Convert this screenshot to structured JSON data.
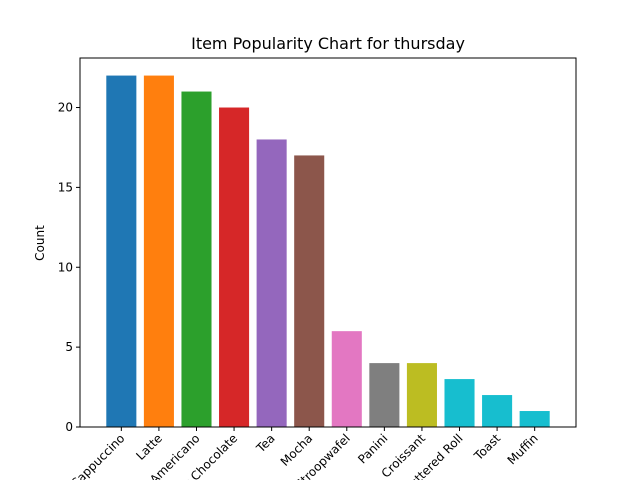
{
  "chart_data": {
    "type": "bar",
    "title": "Item Popularity Chart for thursday",
    "xlabel": "",
    "ylabel": "Count",
    "categories": [
      "Cappuccino",
      "Latte",
      "Americano",
      "Hot Chocolate",
      "Tea",
      "Mocha",
      "Stroopwafel",
      "Panini",
      "Croissant",
      "Buttered Roll",
      "Toast",
      "Muffin"
    ],
    "values": [
      22,
      22,
      21,
      20,
      18,
      17,
      6,
      4,
      4,
      3,
      2,
      1
    ],
    "colors": [
      "#1f77b4",
      "#ff7f0e",
      "#2ca02c",
      "#d62728",
      "#9467bd",
      "#8c564b",
      "#e377c2",
      "#7f7f7f",
      "#bcbd22",
      "#17becf",
      "#17becf",
      "#17becf"
    ],
    "ylim": [
      0,
      23.1
    ],
    "yticks": [
      0,
      5,
      10,
      15,
      20
    ],
    "grid": false,
    "legend": "none"
  }
}
